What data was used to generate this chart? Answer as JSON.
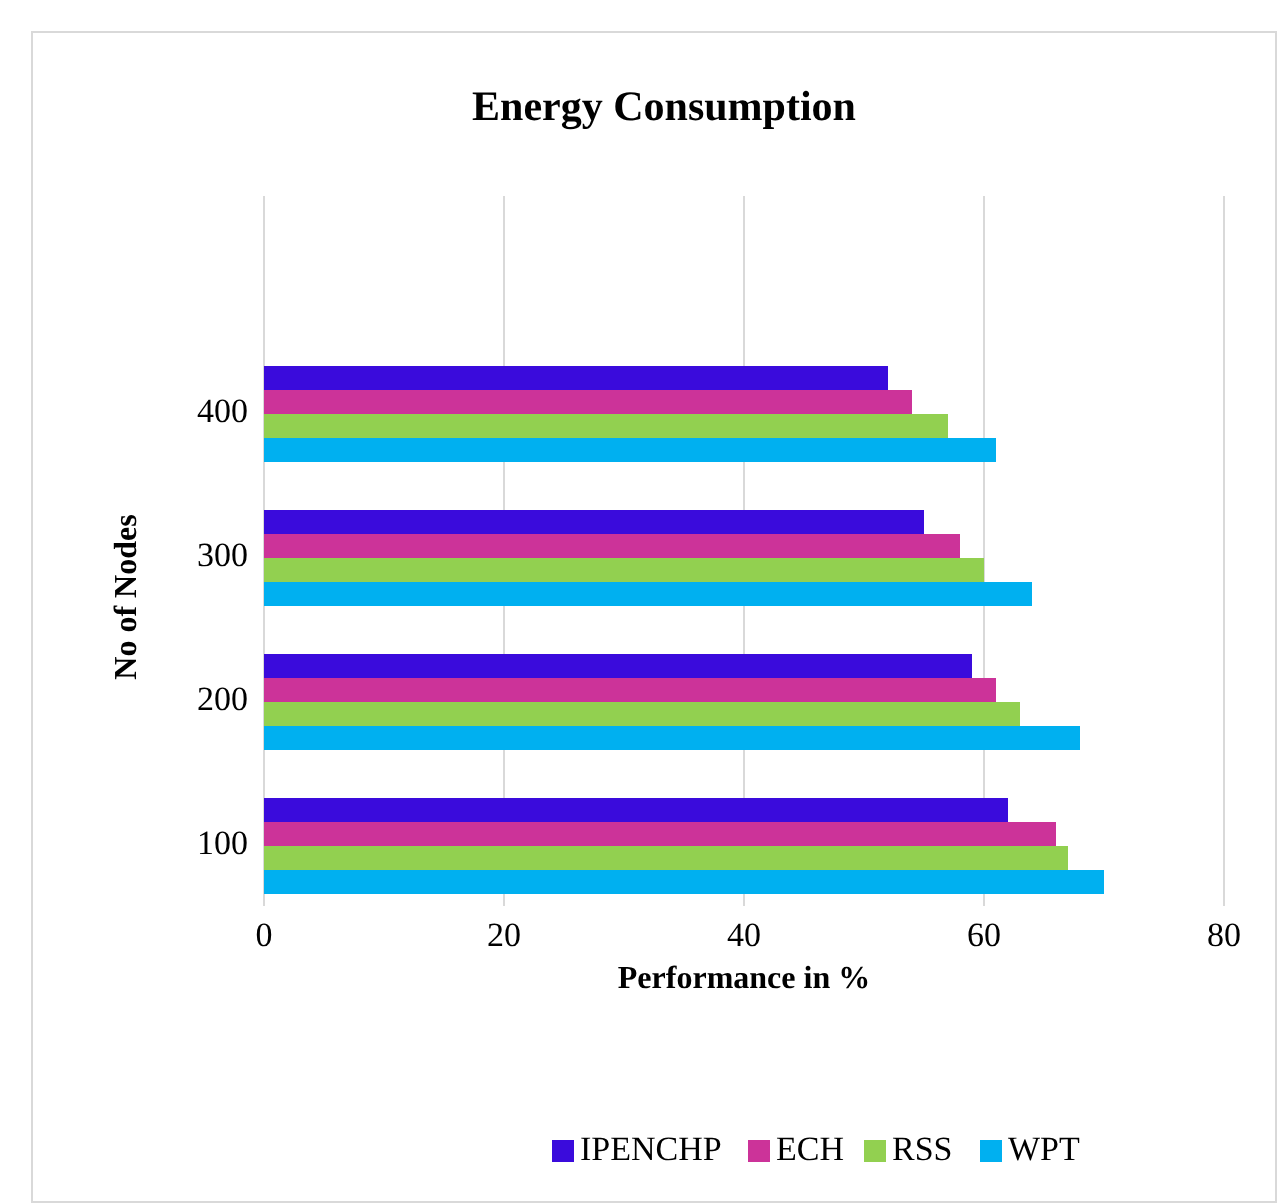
{
  "chart_data": {
    "type": "bar",
    "orientation": "horizontal",
    "title": "Energy Consumption",
    "xlabel": "Performance in %",
    "ylabel": "No of Nodes",
    "categories": [
      "400",
      "300",
      "200",
      "100"
    ],
    "series": [
      {
        "name": "IPENCHP",
        "color": "#3a0bdc",
        "values": [
          52,
          55,
          59,
          62
        ]
      },
      {
        "name": "ECH",
        "color": "#cc3399",
        "values": [
          54,
          58,
          61,
          66
        ]
      },
      {
        "name": "RSS",
        "color": "#92d050",
        "values": [
          57,
          60,
          63,
          67
        ]
      },
      {
        "name": "WPT",
        "color": "#00b0f0",
        "values": [
          61,
          64,
          68,
          70
        ]
      }
    ],
    "xlim": [
      0,
      80
    ],
    "xticks": [
      0,
      20,
      40,
      60,
      80
    ],
    "grid": "x",
    "legend": "bottom"
  }
}
